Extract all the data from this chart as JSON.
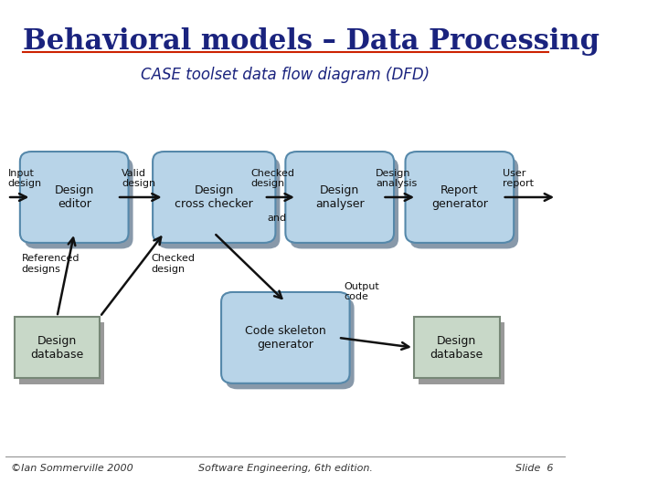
{
  "title": "Behavioral models – Data Processing",
  "subtitle": "CASE toolset data flow diagram (DFD)",
  "footer_left": "©Ian Sommerville 2000",
  "footer_center": "Software Engineering, 6th edition.",
  "footer_right": "Slide  6",
  "bg_color": "#ffffff",
  "title_color": "#1a237e",
  "subtitle_color": "#1a237e",
  "process_fill": "#b8d4e8",
  "process_edge": "#5588aa",
  "shadow_color": "#8899aa",
  "store_fill": "#c8d8c8",
  "store_edge": "#778877",
  "store_shadow": "#999999",
  "arrow_color": "#111111",
  "text_color": "#111111",
  "underline_color": "#cc2200"
}
